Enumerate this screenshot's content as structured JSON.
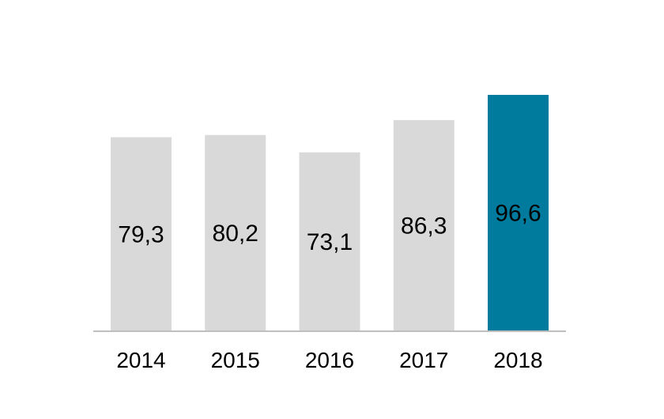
{
  "chart_data": {
    "type": "bar",
    "categories": [
      "2014",
      "2015",
      "2016",
      "2017",
      "2018"
    ],
    "values": [
      79.3,
      80.2,
      73.1,
      86.3,
      96.6
    ],
    "value_labels": [
      "79,3",
      "80,2",
      "73,1",
      "86,3",
      "96,6"
    ],
    "ylim": [
      0,
      96.6
    ],
    "grid": false,
    "legend": "none",
    "colors": {
      "default_bar": "#d9d9d9",
      "highlight_bar": "#007b9e",
      "highlight_index": 4,
      "axis": "#bfbfbf"
    }
  }
}
